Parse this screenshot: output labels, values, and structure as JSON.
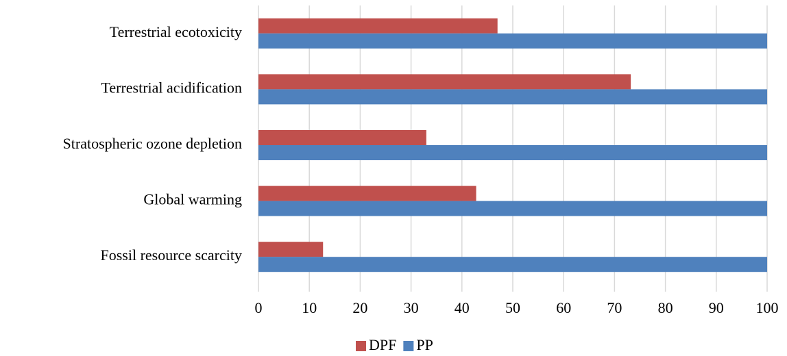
{
  "chart_data": {
    "type": "bar",
    "orientation": "horizontal",
    "categories": [
      "Terrestrial ecotoxicity",
      "Terrestrial acidification",
      "Stratospheric ozone depletion",
      "Global warming",
      "Fossil resource scarcity"
    ],
    "series": [
      {
        "name": "DPF",
        "color": "#c0504d",
        "values": [
          47,
          73.2,
          33,
          42.8,
          12.7
        ]
      },
      {
        "name": "PP",
        "color": "#4f81bd",
        "values": [
          100,
          100,
          100,
          100,
          100
        ]
      }
    ],
    "xlim": [
      0,
      100
    ],
    "xticks": [
      0,
      10,
      20,
      30,
      40,
      50,
      60,
      70,
      80,
      90,
      100
    ],
    "grid": true,
    "legend": "bottom"
  }
}
